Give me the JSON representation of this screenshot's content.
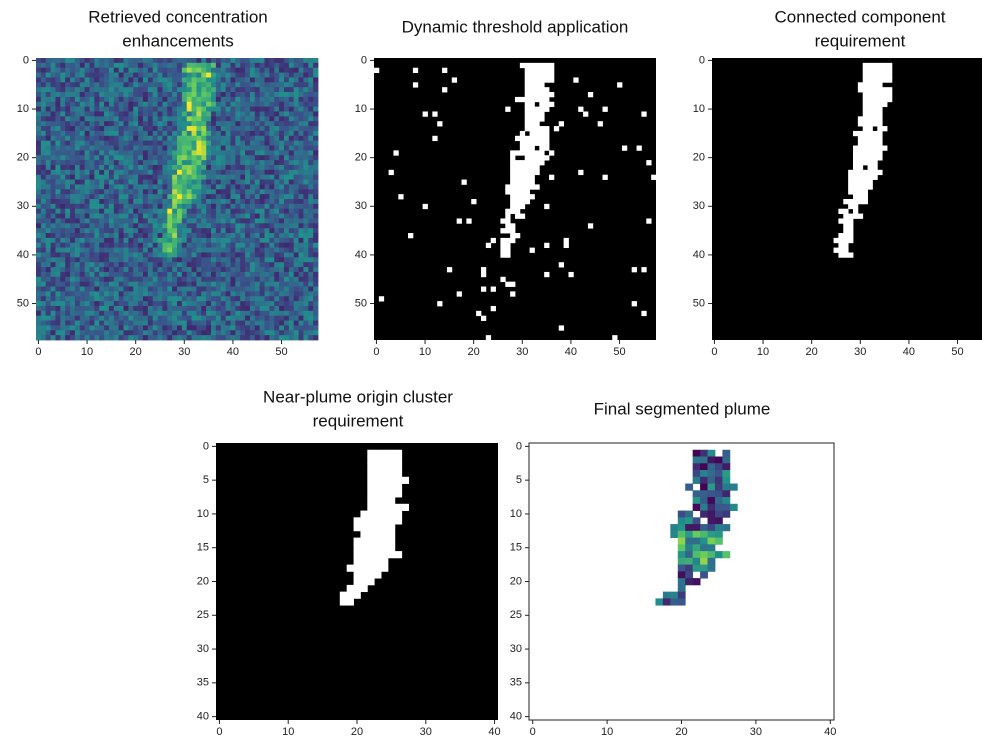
{
  "panels": [
    {
      "title": [
        "Retrieved concentration",
        "enhancements"
      ],
      "style": "heatmap",
      "xlim": [
        -0.5,
        57.5
      ],
      "ylim": [
        57.5,
        -0.5
      ],
      "xticks": [
        0,
        10,
        20,
        30,
        40,
        50
      ],
      "yticks": [
        0,
        10,
        20,
        30,
        40,
        50
      ]
    },
    {
      "title": [
        "Dynamic threshold application"
      ],
      "style": "mask-noisy",
      "xlim": [
        -0.5,
        57.5
      ],
      "ylim": [
        57.5,
        -0.5
      ],
      "xticks": [
        0,
        10,
        20,
        30,
        40,
        50
      ],
      "yticks": [
        0,
        10,
        20,
        30,
        40,
        50
      ]
    },
    {
      "title": [
        "Connected component",
        "requirement"
      ],
      "style": "mask",
      "xlim": [
        -0.5,
        57.5
      ],
      "ylim": [
        57.5,
        -0.5
      ],
      "xticks": [
        0,
        10,
        20,
        30,
        40,
        50
      ],
      "yticks": [
        0,
        10,
        20,
        30,
        40,
        50
      ]
    },
    {
      "title": [
        "Near-plume origin cluster",
        "requirement"
      ],
      "style": "mask",
      "xlim": [
        -0.5,
        40.5
      ],
      "ylim": [
        40.5,
        -0.5
      ],
      "xticks": [
        0,
        10,
        20,
        30,
        40
      ],
      "yticks": [
        0,
        5,
        10,
        15,
        20,
        25,
        30,
        35,
        40
      ]
    },
    {
      "title": [
        "Final segmented plume"
      ],
      "style": "segmented",
      "xlim": [
        -0.5,
        40.5
      ],
      "ylim": [
        40.5,
        -0.5
      ],
      "xticks": [
        0,
        10,
        20,
        30,
        40
      ],
      "yticks": [
        0,
        5,
        10,
        15,
        20,
        25,
        30,
        35,
        40
      ]
    }
  ]
}
